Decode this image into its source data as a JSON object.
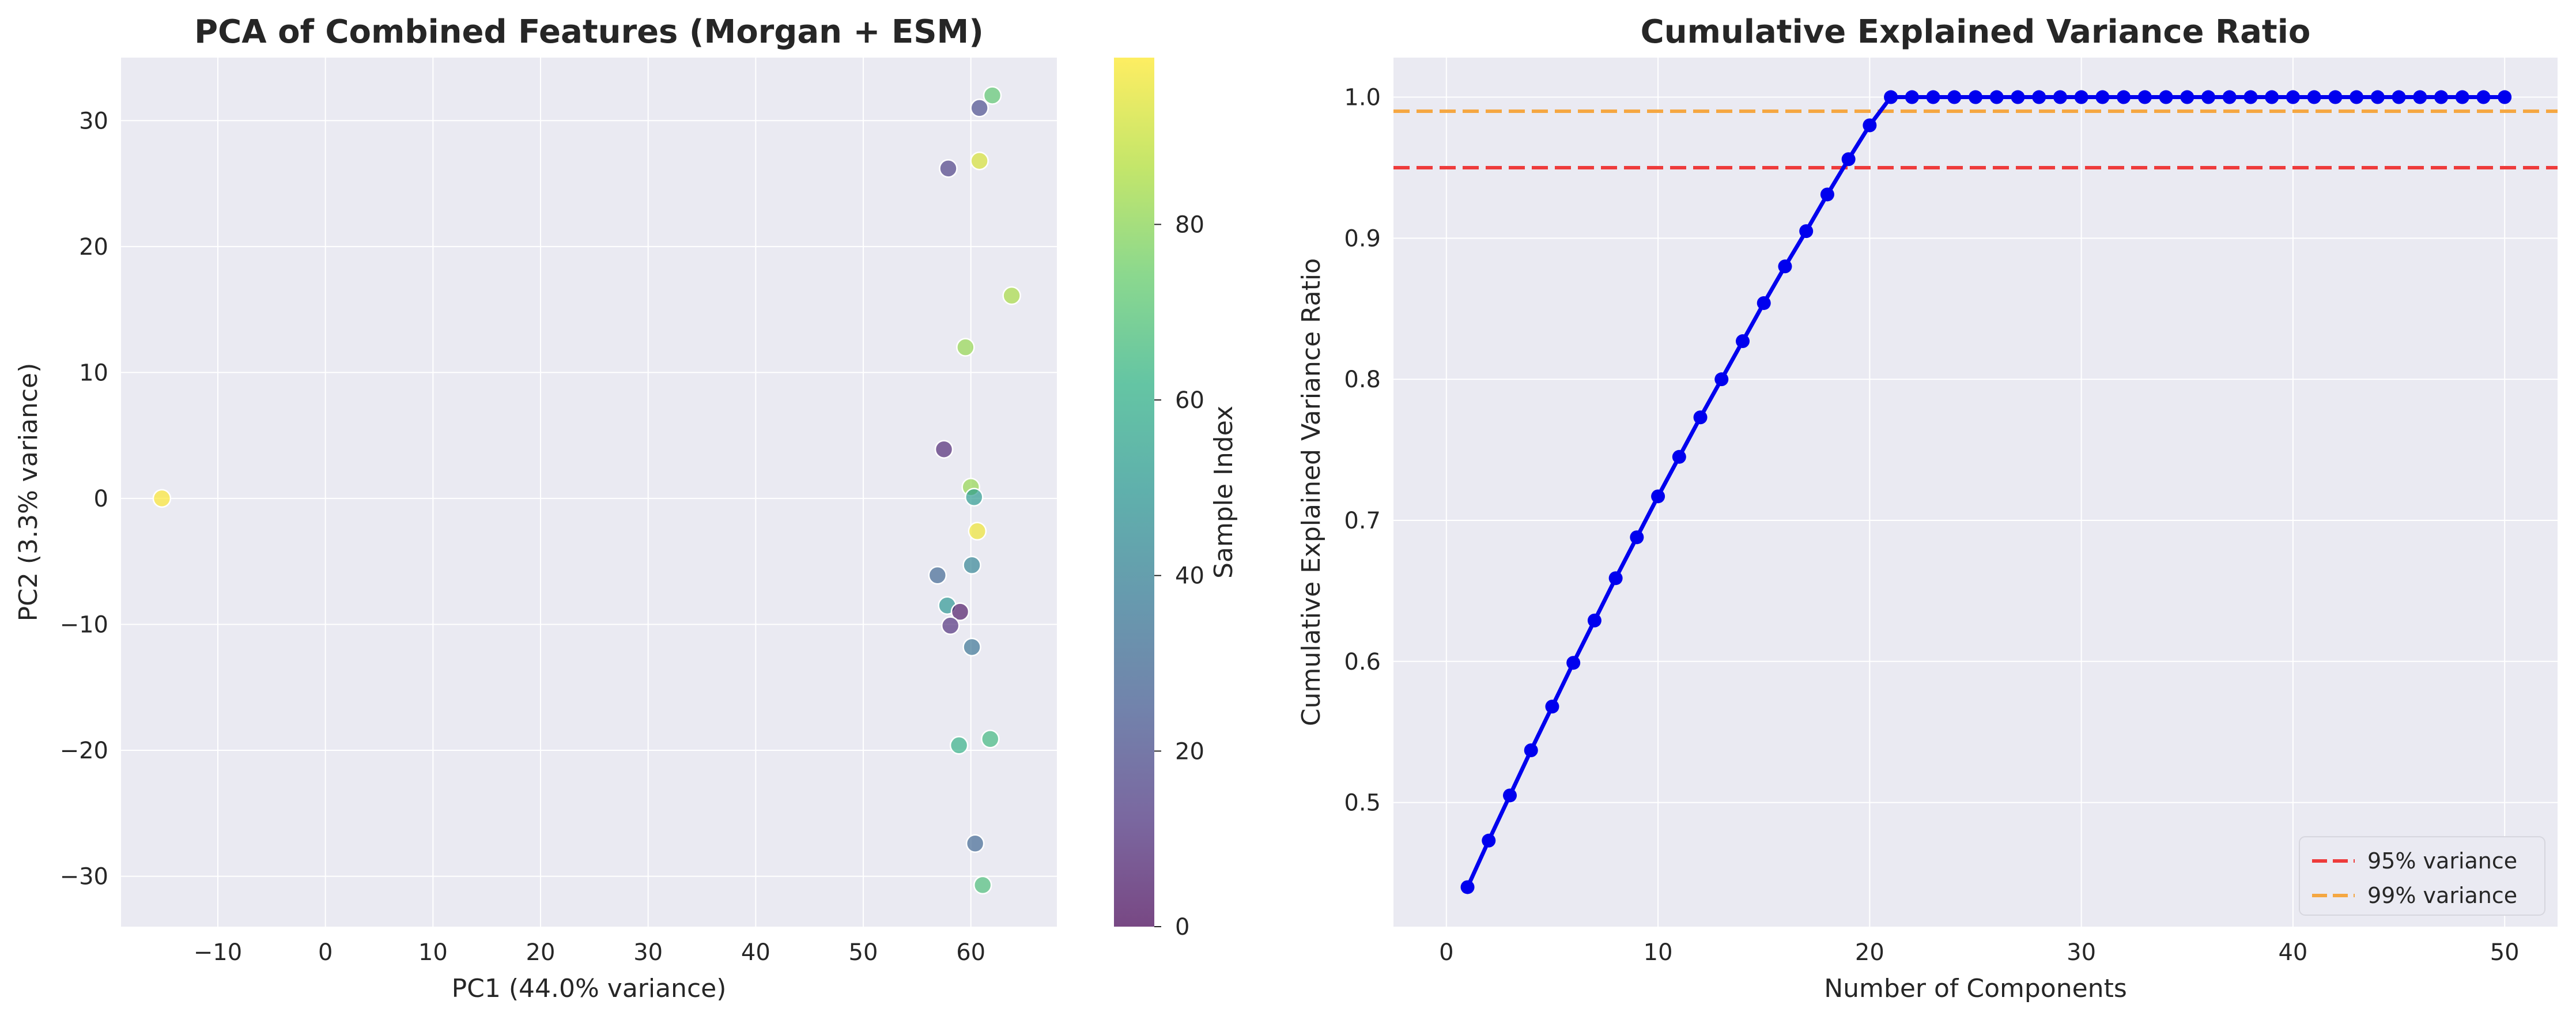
{
  "chart_data": [
    {
      "type": "scatter",
      "title": "PCA of Combined Features (Morgan + ESM)",
      "xlabel": "PC1 (44.0% variance)",
      "ylabel": "PC2 (3.3% variance)",
      "xlim": [
        -19,
        68
      ],
      "ylim": [
        -34,
        35
      ],
      "xticks": [
        -10,
        0,
        10,
        20,
        30,
        40,
        50,
        60
      ],
      "yticks": [
        -30,
        -20,
        -10,
        0,
        10,
        20,
        30
      ],
      "grid": true,
      "colormap": "viridis",
      "marker_alpha": 0.65,
      "colorbar": {
        "label": "Sample Index",
        "range": [
          0,
          99
        ],
        "ticks": [
          0,
          20,
          40,
          60,
          80
        ]
      },
      "points": [
        {
          "x": -15.2,
          "y": 0.0,
          "c": 99
        },
        {
          "x": 62.0,
          "y": 32.0,
          "c": 72
        },
        {
          "x": 60.8,
          "y": 31.0,
          "c": 20
        },
        {
          "x": 60.8,
          "y": 26.8,
          "c": 93
        },
        {
          "x": 57.9,
          "y": 26.2,
          "c": 15
        },
        {
          "x": 63.8,
          "y": 16.1,
          "c": 85
        },
        {
          "x": 59.5,
          "y": 12.0,
          "c": 82
        },
        {
          "x": 57.5,
          "y": 3.9,
          "c": 8
        },
        {
          "x": 60.0,
          "y": 0.9,
          "c": 82
        },
        {
          "x": 60.3,
          "y": 0.1,
          "c": 52
        },
        {
          "x": 60.6,
          "y": -2.6,
          "c": 97
        },
        {
          "x": 56.9,
          "y": -6.1,
          "c": 30
        },
        {
          "x": 60.1,
          "y": -5.3,
          "c": 42
        },
        {
          "x": 57.8,
          "y": -8.5,
          "c": 50
        },
        {
          "x": 59.0,
          "y": -9.0,
          "c": 3
        },
        {
          "x": 58.1,
          "y": -10.1,
          "c": 10
        },
        {
          "x": 60.1,
          "y": -11.8,
          "c": 35
        },
        {
          "x": 58.9,
          "y": -19.6,
          "c": 62
        },
        {
          "x": 61.8,
          "y": -19.1,
          "c": 65
        },
        {
          "x": 60.4,
          "y": -27.4,
          "c": 30
        },
        {
          "x": 61.1,
          "y": -30.7,
          "c": 68
        }
      ]
    },
    {
      "type": "line",
      "title": "Cumulative Explained Variance Ratio",
      "xlabel": "Number of Components",
      "ylabel": "Cumulative Explained Variance Ratio",
      "xlim": [
        -2.5,
        52.5
      ],
      "ylim": [
        0.412,
        1.028
      ],
      "xticks": [
        0,
        10,
        20,
        30,
        40,
        50
      ],
      "yticks": [
        0.5,
        0.6,
        0.7,
        0.8,
        0.9,
        1.0
      ],
      "grid": true,
      "legend_position": "lower-right",
      "series": [
        {
          "color": "#0000ee",
          "x": [
            1,
            2,
            3,
            4,
            5,
            6,
            7,
            8,
            9,
            10,
            11,
            12,
            13,
            14,
            15,
            16,
            17,
            18,
            19,
            20,
            21,
            22,
            23,
            24,
            25,
            26,
            27,
            28,
            29,
            30,
            31,
            32,
            33,
            34,
            35,
            36,
            37,
            38,
            39,
            40,
            41,
            42,
            43,
            44,
            45,
            46,
            47,
            48,
            49,
            50
          ],
          "y": [
            0.44,
            0.473,
            0.505,
            0.537,
            0.568,
            0.599,
            0.629,
            0.659,
            0.688,
            0.717,
            0.745,
            0.773,
            0.8,
            0.827,
            0.854,
            0.88,
            0.905,
            0.931,
            0.956,
            0.98,
            1.0,
            1.0,
            1.0,
            1.0,
            1.0,
            1.0,
            1.0,
            1.0,
            1.0,
            1.0,
            1.0,
            1.0,
            1.0,
            1.0,
            1.0,
            1.0,
            1.0,
            1.0,
            1.0,
            1.0,
            1.0,
            1.0,
            1.0,
            1.0,
            1.0,
            1.0,
            1.0,
            1.0,
            1.0,
            1.0
          ]
        }
      ],
      "hlines": [
        {
          "name": "95% variance",
          "y": 0.95,
          "color": "#ee3b3b"
        },
        {
          "name": "99% variance",
          "y": 0.99,
          "color": "#f5a742"
        }
      ]
    }
  ]
}
